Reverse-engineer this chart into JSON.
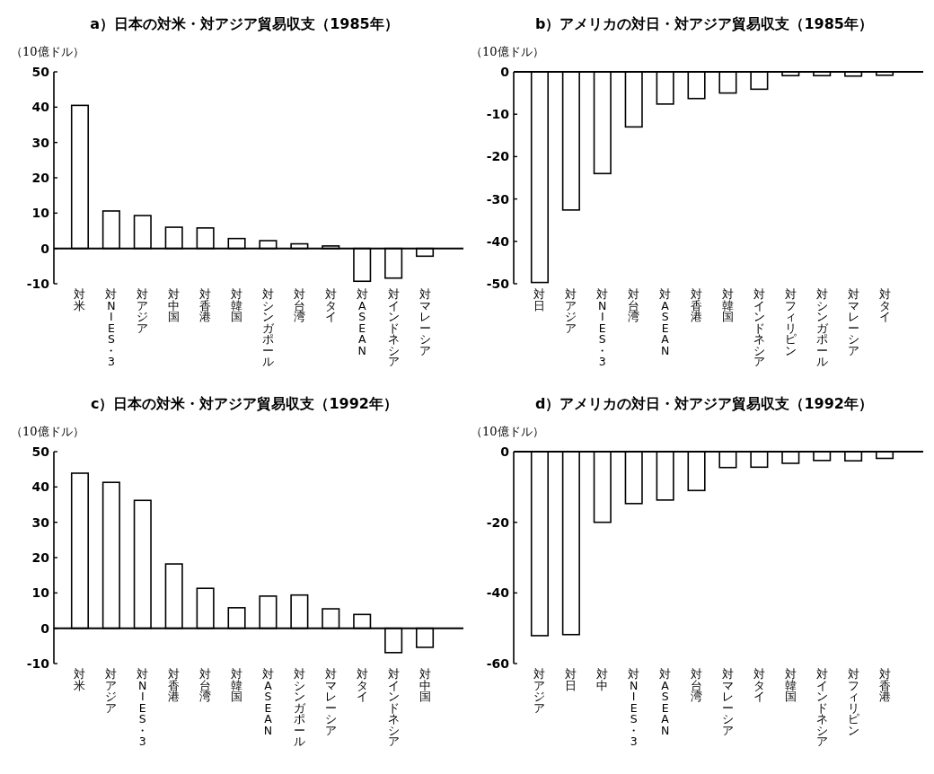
{
  "chart_data": [
    {
      "type": "bar",
      "title": "a）日本の対米・対アジア貿易収支（1985年）",
      "ylabel": "（10億ドル）",
      "categories": [
        "対米",
        "対NIES・3",
        "対アジア",
        "対中国",
        "対香港",
        "対韓国",
        "対シンガポール",
        "対台湾",
        "対タイ",
        "対ASEAN",
        "対インドネシア",
        "対マレーシア"
      ],
      "values": [
        40.5,
        10.6,
        9.3,
        6.0,
        5.8,
        2.8,
        2.2,
        1.3,
        0.7,
        -9.3,
        -8.4,
        -2.2
      ],
      "color": "#ffffff",
      "ylim": [
        -10,
        50
      ],
      "yticks": [
        -10,
        0,
        10,
        20,
        30,
        40,
        50
      ]
    },
    {
      "type": "bar",
      "title": "b）アメリカの対日・対アジア貿易収支（1985年）",
      "ylabel": "（10億ドル）",
      "categories": [
        "対日",
        "対アジア",
        "対NIES・3",
        "対台湾",
        "対ASEAN",
        "対香港",
        "対韓国",
        "対インドネシア",
        "対フィリピン",
        "対シンガポール",
        "対マレーシア",
        "対タイ"
      ],
      "values": [
        -49.7,
        -32.6,
        -24.0,
        -13.0,
        -7.6,
        -6.3,
        -5.0,
        -4.1,
        -0.9,
        -0.9,
        -1.0,
        -0.8
      ],
      "color": "#ffffff",
      "ylim": [
        -50,
        0
      ],
      "yticks": [
        -50,
        -40,
        -30,
        -20,
        -10,
        0
      ]
    },
    {
      "type": "bar",
      "title": "c）日本の対米・対アジア貿易収支（1992年）",
      "ylabel": "（10億ドル）",
      "categories": [
        "対米",
        "対アジア",
        "対NIES・3",
        "対香港",
        "対台湾",
        "対韓国",
        "対ASEAN",
        "対シンガポール",
        "対マレーシア",
        "対タイ",
        "対インドネシア",
        "対中国"
      ],
      "values": [
        43.9,
        41.3,
        36.2,
        18.2,
        11.3,
        5.8,
        9.1,
        9.4,
        5.5,
        3.9,
        -6.9,
        -5.4
      ],
      "color": "#ffffff",
      "ylim": [
        -10,
        50
      ],
      "yticks": [
        -10,
        0,
        10,
        20,
        30,
        40,
        50
      ]
    },
    {
      "type": "bar",
      "title": "d）アメリカの対日・対アジア貿易収支（1992年）",
      "ylabel": "（10億ドル）",
      "categories": [
        "対アジア",
        "対日",
        "対中",
        "対NIES・3",
        "対ASEAN",
        "対台湾",
        "対マレーシア",
        "対タイ",
        "対韓国",
        "対インドネシア",
        "対フィリピン",
        "対香港"
      ],
      "values": [
        -52.1,
        -51.8,
        -20.0,
        -14.7,
        -13.7,
        -11.0,
        -4.5,
        -4.4,
        -3.3,
        -2.5,
        -2.6,
        -1.9
      ],
      "color": "#ffffff",
      "ylim": [
        -60,
        0
      ],
      "yticks": [
        -60,
        -40,
        -20,
        0
      ]
    }
  ]
}
